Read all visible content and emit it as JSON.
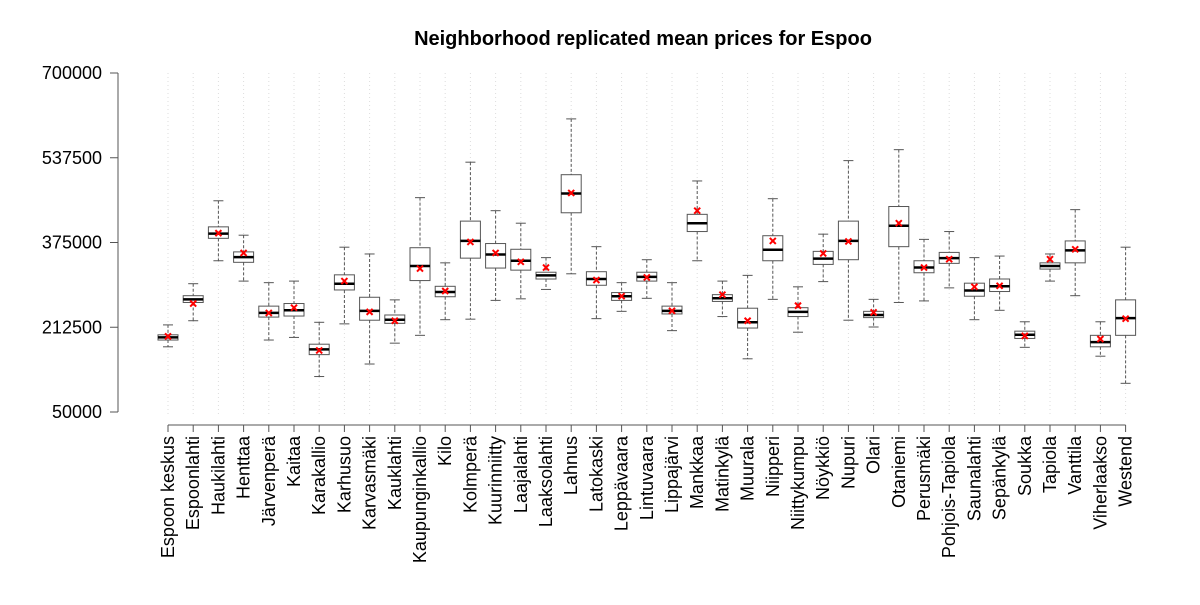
{
  "chart_data": {
    "type": "box",
    "title": "Neighborhood replicated mean prices for Espoo",
    "xlabel": "",
    "ylabel": "",
    "ylim": [
      50000,
      700000
    ],
    "yticks": [
      50000,
      212500,
      375000,
      537500,
      700000
    ],
    "ytick_labels": [
      "50000",
      "212500",
      "375000",
      "537500",
      "700000"
    ],
    "grid": "vertical dotted",
    "legend": "none",
    "mean_marker": "x",
    "colors": {
      "box": "#555555",
      "median": "#000000",
      "whisker": "#555555",
      "mean": "#ff0000",
      "grid": "#dddddd"
    },
    "boxes": [
      {
        "name": "Espoon keskus",
        "min": 175000,
        "q1": 188000,
        "median": 193000,
        "q3": 198000,
        "max": 217000,
        "mean": 195000
      },
      {
        "name": "Espoonlahti",
        "min": 225000,
        "q1": 260000,
        "median": 266000,
        "q3": 273000,
        "max": 296000,
        "mean": 258000
      },
      {
        "name": "Haukilahti",
        "min": 340000,
        "q1": 383000,
        "median": 392000,
        "q3": 405000,
        "max": 455000,
        "mean": 393000
      },
      {
        "name": "Henttaa",
        "min": 301000,
        "q1": 337000,
        "median": 347000,
        "q3": 357000,
        "max": 389000,
        "mean": 355000
      },
      {
        "name": "Järvenperä",
        "min": 188000,
        "q1": 232000,
        "median": 240000,
        "q3": 253000,
        "max": 298000,
        "mean": 240000
      },
      {
        "name": "Kaitaa",
        "min": 193000,
        "q1": 234000,
        "median": 245000,
        "q3": 258000,
        "max": 301000,
        "mean": 250000
      },
      {
        "name": "Karakallio",
        "min": 118000,
        "q1": 160000,
        "median": 170000,
        "q3": 180000,
        "max": 222000,
        "mean": 168000
      },
      {
        "name": "Karhusuo",
        "min": 219000,
        "q1": 284000,
        "median": 296000,
        "q3": 313000,
        "max": 366000,
        "mean": 301000
      },
      {
        "name": "Karvasmäki",
        "min": 142000,
        "q1": 226000,
        "median": 244000,
        "q3": 270000,
        "max": 353000,
        "mean": 242000
      },
      {
        "name": "Kauklahti",
        "min": 182000,
        "q1": 220000,
        "median": 227000,
        "q3": 236000,
        "max": 265000,
        "mean": 225000
      },
      {
        "name": "Kaupunginkallio",
        "min": 197000,
        "q1": 302000,
        "median": 330000,
        "q3": 365000,
        "max": 461000,
        "mean": 325000
      },
      {
        "name": "Kilo",
        "min": 227000,
        "q1": 271000,
        "median": 280000,
        "q3": 291000,
        "max": 336000,
        "mean": 282000
      },
      {
        "name": "Kolmperä",
        "min": 228000,
        "q1": 345000,
        "median": 378000,
        "q3": 416000,
        "max": 529000,
        "mean": 376000
      },
      {
        "name": "Kuurinniitty",
        "min": 264000,
        "q1": 326000,
        "median": 352000,
        "q3": 373000,
        "max": 436000,
        "mean": 355000
      },
      {
        "name": "Laajalahti",
        "min": 267000,
        "q1": 322000,
        "median": 340000,
        "q3": 362000,
        "max": 412000,
        "mean": 338000
      },
      {
        "name": "Laaksolahti",
        "min": 285000,
        "q1": 305000,
        "median": 312000,
        "q3": 318000,
        "max": 346000,
        "mean": 327000
      },
      {
        "name": "Lahnus",
        "min": 315000,
        "q1": 432000,
        "median": 469000,
        "q3": 505000,
        "max": 612000,
        "mean": 470000
      },
      {
        "name": "Latokaski",
        "min": 229000,
        "q1": 293000,
        "median": 305000,
        "q3": 319000,
        "max": 367000,
        "mean": 303000
      },
      {
        "name": "Leppävaara",
        "min": 243000,
        "q1": 264000,
        "median": 272000,
        "q3": 279000,
        "max": 298000,
        "mean": 272000
      },
      {
        "name": "Lintuvaara",
        "min": 268000,
        "q1": 301000,
        "median": 309000,
        "q3": 318000,
        "max": 342000,
        "mean": 308000
      },
      {
        "name": "Lippajärvi",
        "min": 206000,
        "q1": 238000,
        "median": 244000,
        "q3": 253000,
        "max": 298000,
        "mean": 244000
      },
      {
        "name": "Mankkaa",
        "min": 340000,
        "q1": 396000,
        "median": 412000,
        "q3": 429000,
        "max": 493000,
        "mean": 436000
      },
      {
        "name": "Matinkylä",
        "min": 233000,
        "q1": 262000,
        "median": 268000,
        "q3": 275000,
        "max": 301000,
        "mean": 275000
      },
      {
        "name": "Muurala",
        "min": 152000,
        "q1": 211000,
        "median": 222000,
        "q3": 249000,
        "max": 312000,
        "mean": 225000
      },
      {
        "name": "Niipperi",
        "min": 266000,
        "q1": 340000,
        "median": 361000,
        "q3": 388000,
        "max": 459000,
        "mean": 378000
      },
      {
        "name": "Niittykumpu",
        "min": 203000,
        "q1": 233000,
        "median": 242000,
        "q3": 250000,
        "max": 290000,
        "mean": 254000
      },
      {
        "name": "Nöykkiö",
        "min": 300000,
        "q1": 333000,
        "median": 344000,
        "q3": 358000,
        "max": 391000,
        "mean": 354000
      },
      {
        "name": "Nupuri",
        "min": 226000,
        "q1": 342000,
        "median": 378000,
        "q3": 416000,
        "max": 532000,
        "mean": 377000
      },
      {
        "name": "Olari",
        "min": 213000,
        "q1": 231000,
        "median": 236000,
        "q3": 243000,
        "max": 266000,
        "mean": 241000
      },
      {
        "name": "Otaniemi",
        "min": 260000,
        "q1": 367000,
        "median": 407000,
        "q3": 444000,
        "max": 553000,
        "mean": 412000
      },
      {
        "name": "Perusmäki",
        "min": 263000,
        "q1": 317000,
        "median": 327000,
        "q3": 340000,
        "max": 381000,
        "mean": 327000
      },
      {
        "name": "Pohjois-Tapiola",
        "min": 288000,
        "q1": 335000,
        "median": 345000,
        "q3": 356000,
        "max": 396000,
        "mean": 343000
      },
      {
        "name": "Saunalahti",
        "min": 227000,
        "q1": 272000,
        "median": 283000,
        "q3": 297000,
        "max": 346000,
        "mean": 290000
      },
      {
        "name": "Sepänkylä",
        "min": 245000,
        "q1": 281000,
        "median": 291000,
        "q3": 305000,
        "max": 349000,
        "mean": 292000
      },
      {
        "name": "Soukka",
        "min": 174000,
        "q1": 191000,
        "median": 198000,
        "q3": 205000,
        "max": 223000,
        "mean": 196000
      },
      {
        "name": "Tapiola",
        "min": 301000,
        "q1": 324000,
        "median": 330000,
        "q3": 336000,
        "max": 353000,
        "mean": 343000
      },
      {
        "name": "Vanttila",
        "min": 273000,
        "q1": 336000,
        "median": 360000,
        "q3": 378000,
        "max": 438000,
        "mean": 362000
      },
      {
        "name": "Viherlaakso",
        "min": 157000,
        "q1": 175000,
        "median": 184000,
        "q3": 197000,
        "max": 223000,
        "mean": 190000
      },
      {
        "name": "Westend",
        "min": 105000,
        "q1": 197000,
        "median": 230000,
        "q3": 265000,
        "max": 366000,
        "mean": 229000
      }
    ]
  }
}
